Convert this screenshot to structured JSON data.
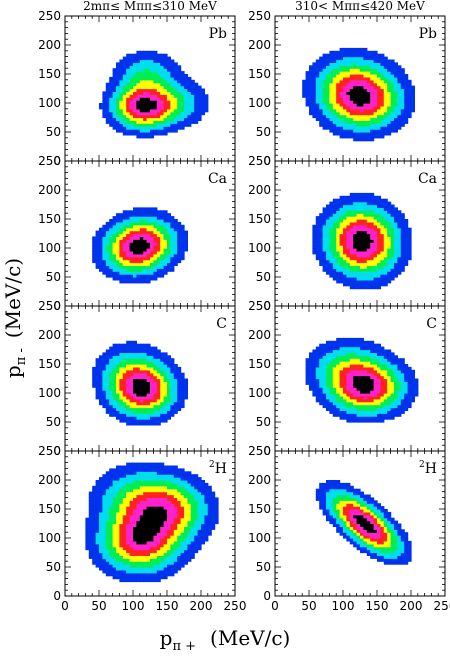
{
  "chart_data": {
    "type": "heatmap",
    "xlim": [
      0,
      250
    ],
    "ylim": [
      0,
      250
    ],
    "xticks": [
      0,
      50,
      100,
      150,
      200,
      250
    ],
    "yticks": [
      0,
      50,
      100,
      150,
      200,
      250
    ],
    "column_titles": [
      "2mπ≤ Mππ≤310 MeV",
      "310< Mππ≤420 MeV"
    ],
    "ylabel": "p",
    "ylabel_sub": "π -",
    "ylabel_unit": "(MeV/c)",
    "xlabel": "p",
    "xlabel_sub": "π +",
    "xlabel_unit": "(MeV/c)",
    "palette": [
      "#0033ee",
      "#00ddee",
      "#00ee55",
      "#ffff00",
      "#ff2222",
      "#ff22cc",
      "#000000"
    ],
    "panels": [
      {
        "nucleus": "Pb",
        "mass": "",
        "row": 0,
        "col": 0,
        "peaks": [
          {
            "x": 115,
            "y": 95,
            "w": 1.0
          },
          {
            "x": 120,
            "y": 150,
            "w": 0.35
          },
          {
            "x": 165,
            "y": 100,
            "w": 0.3
          }
        ],
        "spread": [
          1.0,
          0.9
        ]
      },
      {
        "nucleus": "Pb",
        "mass": "",
        "row": 0,
        "col": 1,
        "peaks": [
          {
            "x": 130,
            "y": 105,
            "w": 1.0
          },
          {
            "x": 110,
            "y": 135,
            "w": 0.5
          }
        ],
        "spread": [
          1.25,
          1.2
        ]
      },
      {
        "nucleus": "Ca",
        "mass": "",
        "row": 1,
        "col": 0,
        "peaks": [
          {
            "x": 100,
            "y": 95,
            "w": 0.9
          },
          {
            "x": 120,
            "y": 115,
            "w": 0.8
          }
        ],
        "spread": [
          1.05,
          1.0
        ]
      },
      {
        "nucleus": "Ca",
        "mass": "",
        "row": 1,
        "col": 1,
        "peaks": [
          {
            "x": 125,
            "y": 120,
            "w": 1.0
          },
          {
            "x": 135,
            "y": 95,
            "w": 0.45
          }
        ],
        "spread": [
          1.15,
          1.3
        ]
      },
      {
        "nucleus": "C",
        "mass": "",
        "row": 2,
        "col": 0,
        "peaks": [
          {
            "x": 115,
            "y": 105,
            "w": 1.0
          },
          {
            "x": 95,
            "y": 140,
            "w": 0.35
          }
        ],
        "spread": [
          1.05,
          1.05
        ]
      },
      {
        "nucleus": "C",
        "mass": "",
        "row": 2,
        "col": 1,
        "peaks": [
          {
            "x": 135,
            "y": 110,
            "w": 1.0
          },
          {
            "x": 105,
            "y": 145,
            "w": 0.4
          }
        ],
        "spread": [
          1.2,
          1.05
        ]
      },
      {
        "nucleus": "H",
        "mass": "2",
        "row": 3,
        "col": 0,
        "peaks": [
          {
            "x": 110,
            "y": 95,
            "w": 0.9
          },
          {
            "x": 150,
            "y": 150,
            "w": 0.75
          },
          {
            "x": 100,
            "y": 170,
            "w": 0.35
          }
        ],
        "spread": [
          1.3,
          1.25
        ]
      },
      {
        "nucleus": "H",
        "mass": "2",
        "row": 3,
        "col": 1,
        "peaks": [
          {
            "x": 145,
            "y": 110,
            "w": 1.0
          },
          {
            "x": 115,
            "y": 145,
            "w": 0.8
          }
        ],
        "spread": [
          1.1,
          0.8
        ],
        "diagonal": true
      }
    ]
  }
}
